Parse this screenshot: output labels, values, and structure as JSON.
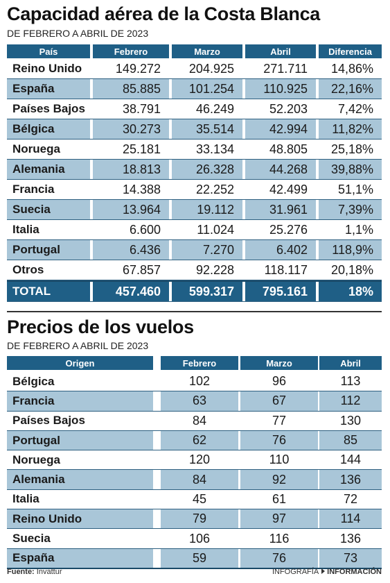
{
  "chart_data": [
    {
      "type": "table",
      "title": "Capacidad aérea de la Costa Blanca",
      "subtitle": "DE FEBRERO A ABRIL DE 2023",
      "columns": [
        "País",
        "Febrero",
        "Marzo",
        "Abril",
        "Diferencia"
      ],
      "rows": [
        [
          "Reino Unido",
          "149.272",
          "204.925",
          "271.711",
          "14,86%"
        ],
        [
          "España",
          "85.885",
          "101.254",
          "110.925",
          "22,16%"
        ],
        [
          "Países Bajos",
          "38.791",
          "46.249",
          "52.203",
          "7,42%"
        ],
        [
          "Bélgica",
          "30.273",
          "35.514",
          "42.994",
          "11,82%"
        ],
        [
          "Noruega",
          "25.181",
          "33.134",
          "48.805",
          "25,18%"
        ],
        [
          "Alemania",
          "18.813",
          "26.328",
          "44.268",
          "39,88%"
        ],
        [
          "Francia",
          "14.388",
          "22.252",
          "42.499",
          "51,1%"
        ],
        [
          "Suecia",
          "13.964",
          "19.112",
          "31.961",
          "7,39%"
        ],
        [
          "Italia",
          "6.600",
          "11.024",
          "25.276",
          "1,1%"
        ],
        [
          "Portugal",
          "6.436",
          "7.270",
          "6.402",
          "118,9%"
        ],
        [
          "Otros",
          "67.857",
          "92.228",
          "118.117",
          "20,18%"
        ]
      ],
      "total": [
        "TOTAL",
        "457.460",
        "599.317",
        "795.161",
        "18%"
      ]
    },
    {
      "type": "table",
      "title": "Precios de los vuelos",
      "subtitle": "DE FEBRERO A ABRIL DE 2023",
      "columns": [
        "Origen",
        "Febrero",
        "Marzo",
        "Abril"
      ],
      "rows": [
        [
          "Bélgica",
          "102",
          "96",
          "113"
        ],
        [
          "Francia",
          "63",
          "67",
          "112"
        ],
        [
          "Países Bajos",
          "84",
          "77",
          "130"
        ],
        [
          "Portugal",
          "62",
          "76",
          "85"
        ],
        [
          "Noruega",
          "120",
          "110",
          "144"
        ],
        [
          "Alemania",
          "84",
          "92",
          "136"
        ],
        [
          "Italia",
          "45",
          "61",
          "72"
        ],
        [
          "Reino Unido",
          "79",
          "97",
          "114"
        ],
        [
          "Suecia",
          "106",
          "116",
          "136"
        ],
        [
          "España",
          "59",
          "76",
          "73"
        ]
      ]
    }
  ],
  "colors": {
    "header": "#1f5f86",
    "stripe": "#a9c6d8"
  },
  "footer": {
    "source_label": "Fuente:",
    "source_value": "Invattur",
    "brand_left": "INFOGRAFÍA",
    "brand_right": "INFORMACIÓN"
  }
}
